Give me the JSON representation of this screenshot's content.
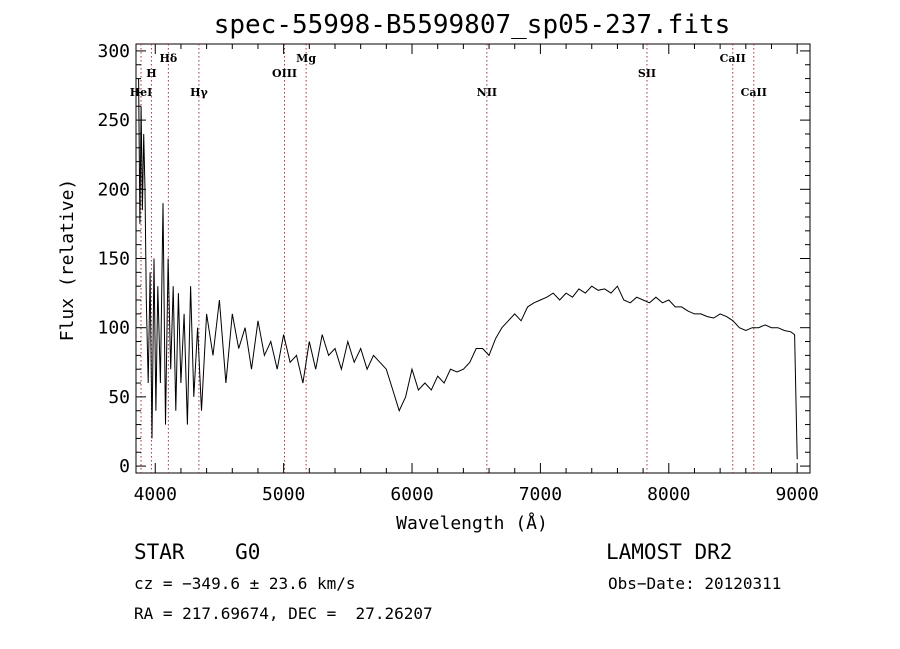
{
  "chart_data": {
    "type": "line",
    "title": "spec-55998-B5599807_sp05-237.fits",
    "xlabel": "Wavelength (Å)",
    "ylabel": "Flux (relative)",
    "xlim": [
      3850,
      9100
    ],
    "ylim": [
      -5,
      305
    ],
    "xticks": [
      4000,
      5000,
      6000,
      7000,
      8000,
      9000
    ],
    "yticks": [
      0,
      50,
      100,
      150,
      200,
      250,
      300
    ],
    "grid": false,
    "line_color": "#000000",
    "marker_color": "#b03030",
    "series": [
      {
        "x": [
          3870,
          3880,
          3890,
          3900,
          3910,
          3920,
          3930,
          3945,
          3960,
          3975,
          3990,
          4005,
          4020,
          4040,
          4060,
          4080,
          4100,
          4120,
          4140,
          4160,
          4180,
          4200,
          4225,
          4250,
          4275,
          4300,
          4330,
          4360,
          4400,
          4450,
          4500,
          4550,
          4600,
          4650,
          4700,
          4750,
          4800,
          4850,
          4900,
          4950,
          5000,
          5050,
          5100,
          5150,
          5200,
          5250,
          5300,
          5350,
          5400,
          5450,
          5500,
          5550,
          5600,
          5650,
          5700,
          5750,
          5800,
          5850,
          5900,
          5950,
          6000,
          6050,
          6100,
          6150,
          6200,
          6250,
          6300,
          6350,
          6400,
          6450,
          6500,
          6550,
          6600,
          6650,
          6700,
          6750,
          6800,
          6850,
          6900,
          6950,
          7000,
          7050,
          7100,
          7150,
          7200,
          7250,
          7300,
          7350,
          7400,
          7450,
          7500,
          7550,
          7600,
          7650,
          7700,
          7750,
          7800,
          7850,
          7900,
          7950,
          8000,
          8050,
          8100,
          8150,
          8200,
          8250,
          8300,
          8350,
          8400,
          8450,
          8500,
          8550,
          8600,
          8650,
          8700,
          8750,
          8800,
          8850,
          8900,
          8950,
          8980,
          9000
        ],
        "y": [
          280,
          175,
          260,
          185,
          240,
          200,
          120,
          60,
          140,
          20,
          150,
          40,
          130,
          60,
          190,
          30,
          150,
          70,
          130,
          40,
          125,
          60,
          110,
          30,
          130,
          50,
          100,
          40,
          110,
          80,
          120,
          60,
          110,
          85,
          100,
          70,
          105,
          80,
          90,
          70,
          95,
          75,
          80,
          60,
          90,
          70,
          95,
          80,
          85,
          70,
          90,
          75,
          85,
          70,
          80,
          75,
          70,
          55,
          40,
          50,
          70,
          55,
          60,
          55,
          65,
          60,
          70,
          68,
          70,
          75,
          85,
          85,
          80,
          92,
          100,
          105,
          110,
          105,
          115,
          118,
          120,
          122,
          125,
          120,
          125,
          122,
          128,
          125,
          130,
          127,
          128,
          125,
          130,
          120,
          118,
          122,
          120,
          118,
          122,
          118,
          120,
          115,
          115,
          112,
          110,
          110,
          108,
          107,
          110,
          108,
          105,
          100,
          98,
          100,
          100,
          102,
          100,
          100,
          98,
          97,
          95,
          5
        ]
      }
    ],
    "lines": [
      {
        "label": "HeI",
        "x": 3889
      },
      {
        "label": "H",
        "x": 3970
      },
      {
        "label": "Hδ",
        "x": 4102
      },
      {
        "label": "Hγ",
        "x": 4340
      },
      {
        "label": "OIII",
        "x": 5007
      },
      {
        "label": "Mg",
        "x": 5175
      },
      {
        "label": "NII",
        "x": 6583
      },
      {
        "label": "SII",
        "x": 7830
      },
      {
        "label": "CaII",
        "x": 8498
      },
      {
        "label": "CaII",
        "x": 8662
      }
    ]
  },
  "info": {
    "object": "STAR    G0",
    "survey": "LAMOST DR2",
    "cz": "cz = −349.6 ± 23.6 km/s",
    "obs_date": "Obs−Date: 20120311",
    "coords": "RA = 217.69674, DEC =  27.26207"
  }
}
